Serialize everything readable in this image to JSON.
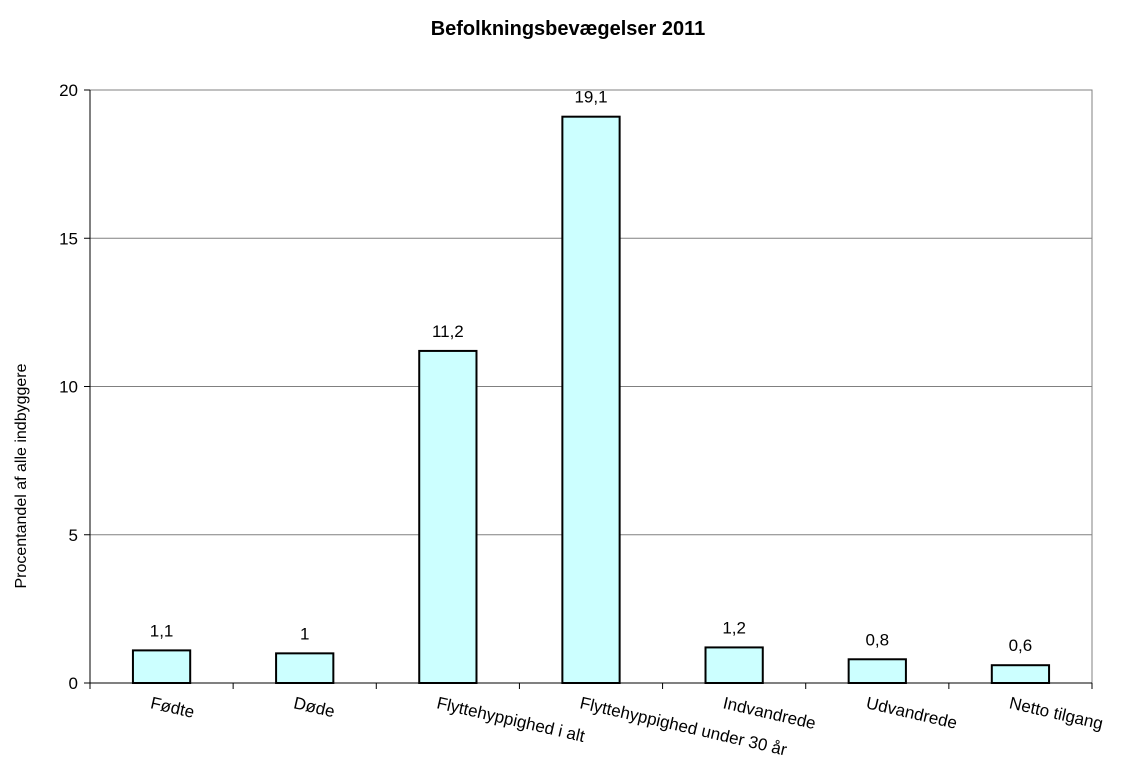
{
  "chart_data": {
    "type": "bar",
    "title": "Befolkningsbevægelser 2011",
    "xlabel": "",
    "ylabel": "Procentandel af alle indbyggere",
    "categories": [
      "Fødte",
      "Døde",
      "Flyttehyppighed i alt",
      "Flyttehyppighed under 30 år",
      "Indvandrede",
      "Udvandrede",
      "Netto tilgang"
    ],
    "values": [
      1.1,
      1,
      11.2,
      19.1,
      1.2,
      0.8,
      0.6
    ],
    "value_labels": [
      "1,1",
      "1",
      "11,2",
      "19,1",
      "1,2",
      "0,8",
      "0,6"
    ],
    "ylim": [
      0,
      20
    ],
    "yticks": [
      0,
      5,
      10,
      15,
      20
    ],
    "grid": true,
    "bar_color": "#ccffff",
    "bar_edge_color": "#000000"
  }
}
